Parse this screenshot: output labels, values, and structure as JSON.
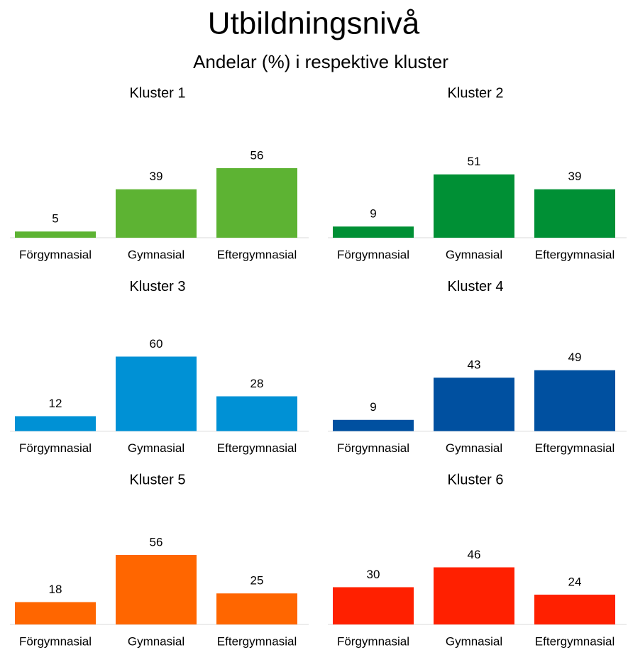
{
  "title": "Utbildningsnivå",
  "subtitle": "Andelar (%) i respektive kluster",
  "chart_data": [
    {
      "type": "bar",
      "title": "Kluster 1",
      "categories": [
        "Förgymnasial",
        "Gymnasial",
        "Eftergymnasial"
      ],
      "values": [
        5,
        39,
        56
      ],
      "color": "#5db333",
      "ylim": [
        0,
        60
      ]
    },
    {
      "type": "bar",
      "title": "Kluster 2",
      "categories": [
        "Förgymnasial",
        "Gymnasial",
        "Eftergymnasial"
      ],
      "values": [
        9,
        51,
        39
      ],
      "color": "#009035",
      "ylim": [
        0,
        60
      ]
    },
    {
      "type": "bar",
      "title": "Kluster 3",
      "categories": [
        "Förgymnasial",
        "Gymnasial",
        "Eftergymnasial"
      ],
      "values": [
        12,
        60,
        28
      ],
      "color": "#0091d5",
      "ylim": [
        0,
        60
      ]
    },
    {
      "type": "bar",
      "title": "Kluster 4",
      "categories": [
        "Förgymnasial",
        "Gymnasial",
        "Eftergymnasial"
      ],
      "values": [
        9,
        43,
        49
      ],
      "color": "#0050a0",
      "ylim": [
        0,
        60
      ]
    },
    {
      "type": "bar",
      "title": "Kluster 5",
      "categories": [
        "Förgymnasial",
        "Gymnasial",
        "Eftergymnasial"
      ],
      "values": [
        18,
        56,
        25
      ],
      "color": "#ff6600",
      "ylim": [
        0,
        60
      ]
    },
    {
      "type": "bar",
      "title": "Kluster 6",
      "categories": [
        "Förgymnasial",
        "Gymnasial",
        "Eftergymnasial"
      ],
      "values": [
        30,
        46,
        24
      ],
      "color": "#ff2000",
      "ylim": [
        0,
        60
      ]
    }
  ]
}
